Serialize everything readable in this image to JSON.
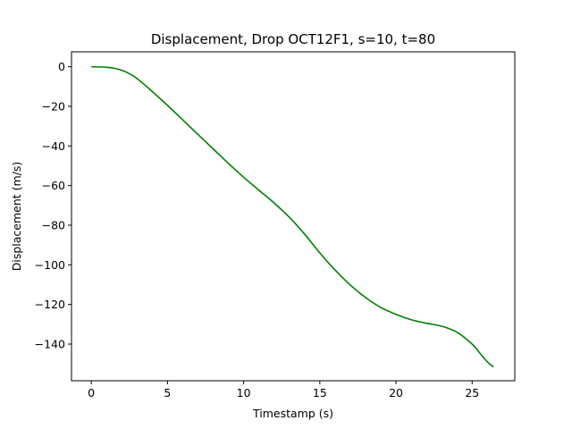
{
  "chart_data": {
    "type": "line",
    "title": "Displacement, Drop OCT12F1, s=10, t=80",
    "xlabel": "Timestamp (s)",
    "ylabel": "Displacement (m/s)",
    "xlim": [
      -1.3,
      27.8
    ],
    "ylim": [
      -158.5,
      7.5
    ],
    "xticks": [
      0,
      5,
      10,
      15,
      20,
      25
    ],
    "yticks": [
      0,
      -20,
      -40,
      -60,
      -80,
      -100,
      -120,
      -140
    ],
    "grid": false,
    "series": [
      {
        "color": "#008000",
        "x": [
          0,
          1,
          1.5,
          2,
          2.5,
          3,
          4,
          5,
          6,
          7,
          8,
          9,
          10,
          11,
          12,
          13,
          14,
          15,
          16,
          17,
          18,
          19,
          20,
          21,
          22,
          23,
          24,
          25,
          25.5,
          26,
          26.4
        ],
        "y": [
          0,
          -0.3,
          -0.8,
          -1.8,
          -3.5,
          -6,
          -12.5,
          -19.5,
          -26.8,
          -34.2,
          -41.5,
          -48.8,
          -55.8,
          -62.3,
          -68.8,
          -76,
          -84.5,
          -94,
          -102.6,
          -110.2,
          -116.5,
          -121.5,
          -125,
          -127.7,
          -129.5,
          -131,
          -134,
          -140,
          -144.5,
          -149,
          -151.5
        ]
      }
    ]
  }
}
